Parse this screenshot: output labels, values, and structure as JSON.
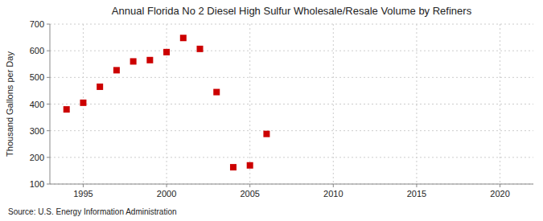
{
  "chart_data": {
    "type": "scatter",
    "title": "Annual Florida No 2 Diesel High Sulfur Wholesale/Resale Volume by Refiners",
    "ylabel": "Thousand Gallons per Day",
    "annotations": [
      "Source: U.S. Energy Information Administration"
    ],
    "x": [
      1994,
      1995,
      1996,
      1997,
      1998,
      1999,
      2000,
      2001,
      2002,
      2003,
      2004,
      2005,
      2006
    ],
    "values": [
      380,
      405,
      465,
      527,
      560,
      565,
      595,
      648,
      607,
      445,
      163,
      170,
      288
    ],
    "color": "#cc0000",
    "marker": "square",
    "xlim": [
      1993,
      2022
    ],
    "ylim": [
      100,
      700
    ],
    "xticks": [
      1995,
      2000,
      2005,
      2010,
      2015,
      2020
    ],
    "yticks": [
      100,
      200,
      300,
      400,
      500,
      600,
      700
    ],
    "grid": true
  }
}
